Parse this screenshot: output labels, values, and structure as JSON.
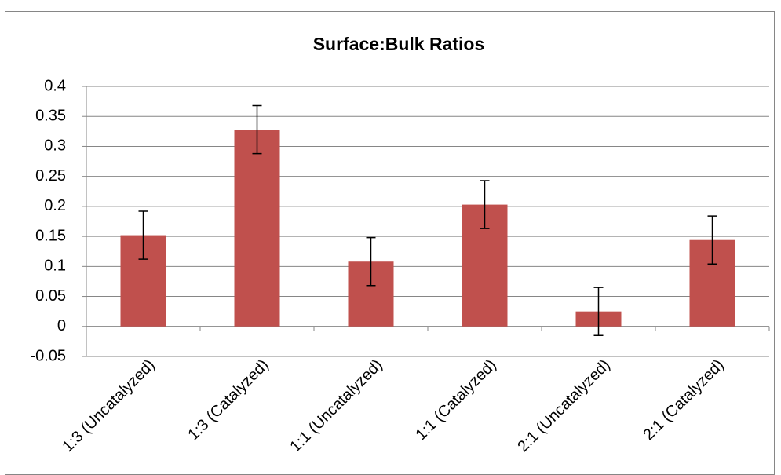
{
  "chart_data": {
    "type": "bar",
    "title": "Surface:Bulk Ratios",
    "categories": [
      "1:3 (Uncatalyzed)",
      "1:3 (Catalyzed)",
      "1:1 (Uncatalyzed)",
      "1:1 (Catalyzed)",
      "2:1 (Uncatalyzed)",
      "2:1 (Catalyzed)"
    ],
    "values": [
      0.152,
      0.328,
      0.108,
      0.203,
      0.025,
      0.144
    ],
    "errors": [
      0.04,
      0.04,
      0.04,
      0.04,
      0.04,
      0.04
    ],
    "color": "#c0504d",
    "ylim": [
      -0.05,
      0.4
    ],
    "yticks": [
      -0.05,
      0,
      0.05,
      0.1,
      0.15,
      0.2,
      0.25,
      0.3,
      0.35,
      0.4
    ],
    "grid": true
  }
}
